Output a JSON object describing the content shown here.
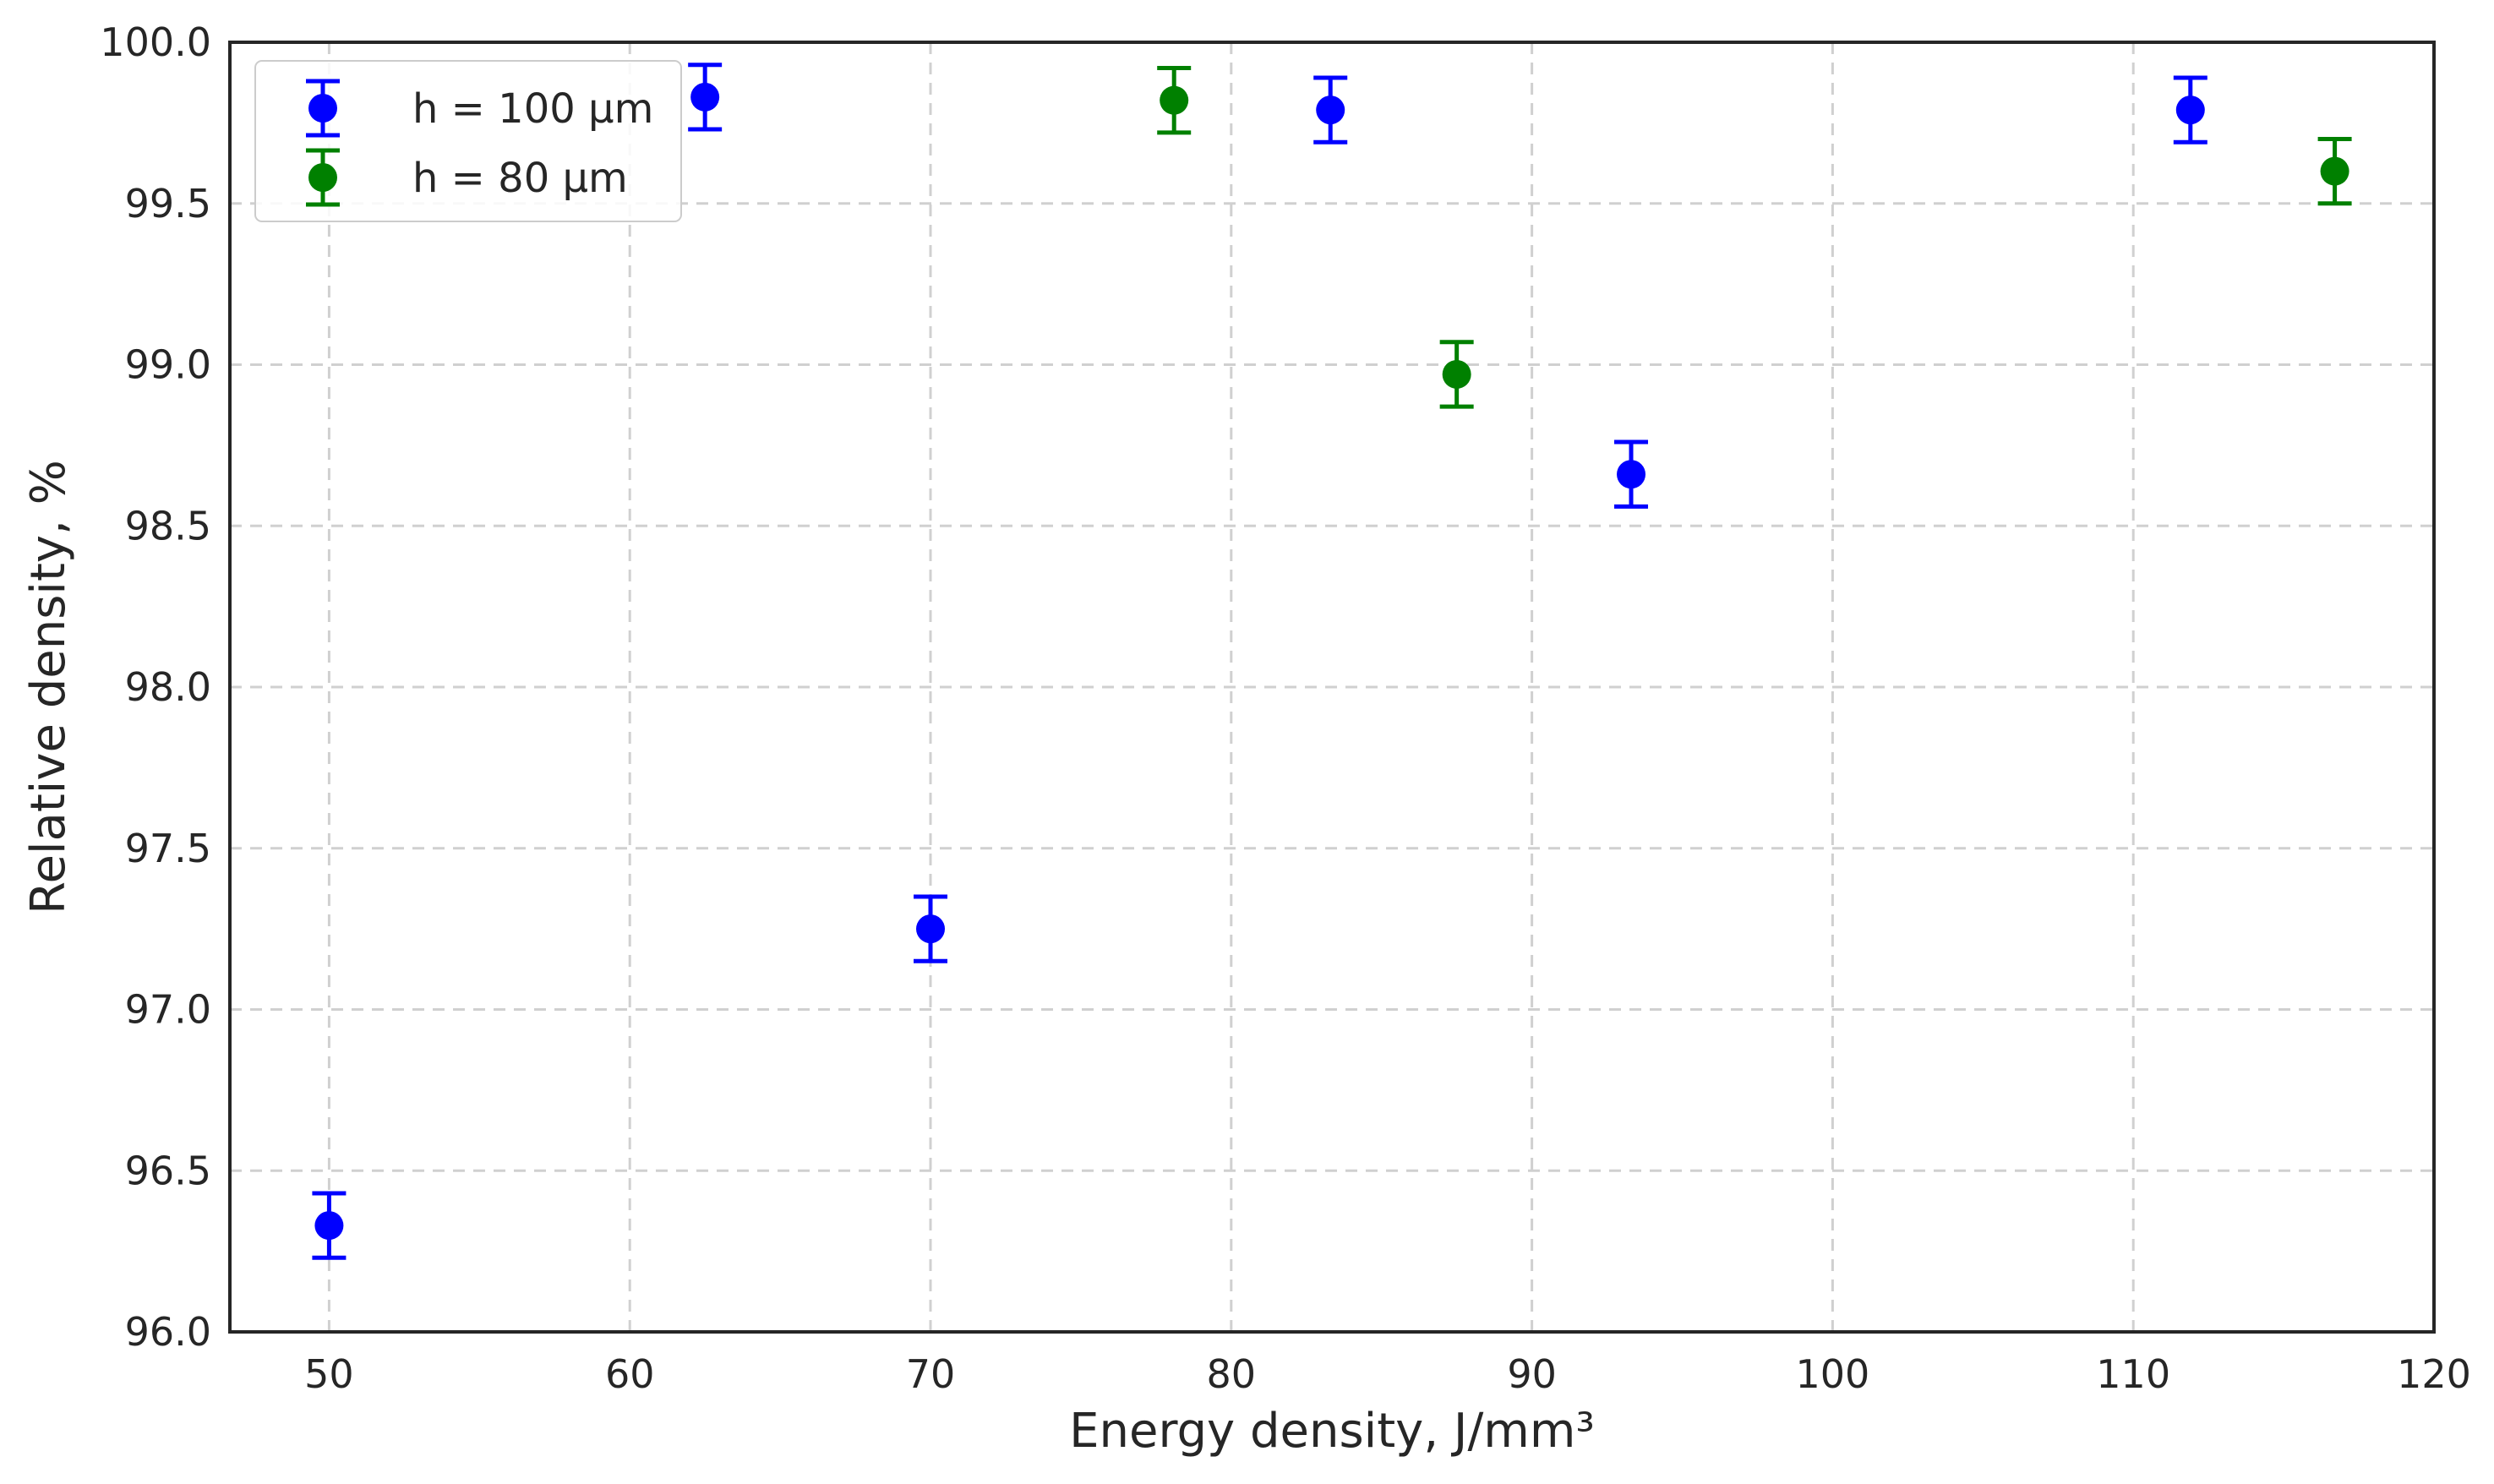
{
  "chart_data": {
    "type": "scatter",
    "title": "",
    "xlabel": "Energy density, J/mm³",
    "ylabel": "Relative density, %",
    "xlim": [
      46.7,
      120
    ],
    "ylim": [
      96.0,
      100.0
    ],
    "xticks": [
      50,
      60,
      70,
      80,
      90,
      100,
      110,
      120
    ],
    "xtick_labels": [
      "50",
      "60",
      "70",
      "80",
      "90",
      "100",
      "110",
      "120"
    ],
    "yticks": [
      96.0,
      96.5,
      97.0,
      97.5,
      98.0,
      98.5,
      99.0,
      99.5,
      100.0
    ],
    "ytick_labels": [
      "96.0",
      "96.5",
      "97.0",
      "97.5",
      "98.0",
      "98.5",
      "99.0",
      "99.5",
      "100.0"
    ],
    "grid": true,
    "grid_style": "dashed",
    "legend_position": "top-left",
    "error_bars": true,
    "series": [
      {
        "name": "h = 100 μm",
        "color": "#0000ff",
        "points": [
          {
            "x": 50.0,
            "y": 96.33,
            "err": 0.1
          },
          {
            "x": 62.5,
            "y": 99.83,
            "err": 0.1
          },
          {
            "x": 70.0,
            "y": 97.25,
            "err": 0.1
          },
          {
            "x": 83.3,
            "y": 99.79,
            "err": 0.1
          },
          {
            "x": 93.3,
            "y": 98.66,
            "err": 0.1
          },
          {
            "x": 111.9,
            "y": 99.79,
            "err": 0.1
          }
        ]
      },
      {
        "name": "h = 80 μm",
        "color": "#008000",
        "points": [
          {
            "x": 78.1,
            "y": 99.82,
            "err": 0.1
          },
          {
            "x": 87.5,
            "y": 98.97,
            "err": 0.1
          },
          {
            "x": 116.7,
            "y": 99.6,
            "err": 0.1
          }
        ]
      }
    ]
  }
}
